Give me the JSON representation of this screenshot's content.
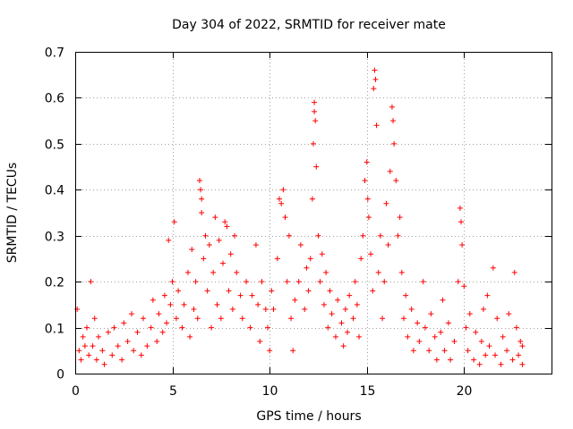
{
  "chart_data": {
    "type": "scatter",
    "title": "Day 304 of 2022, SRMTID for receiver mate",
    "xlabel": "GPS time / hours",
    "ylabel": "SRMTID / TECUs",
    "xlim": [
      0,
      24.5
    ],
    "ylim": [
      0,
      0.7
    ],
    "xticks": [
      0,
      5,
      10,
      15,
      20
    ],
    "yticks": [
      0,
      0.1,
      0.2,
      0.3,
      0.4,
      0.5,
      0.6,
      0.7
    ],
    "grid": true,
    "marker": "+",
    "color": "#ff0000",
    "series": [
      {
        "name": "SRMTID",
        "points": [
          [
            0.1,
            0.14
          ],
          [
            0.2,
            0.05
          ],
          [
            0.3,
            0.03
          ],
          [
            0.4,
            0.08
          ],
          [
            0.5,
            0.06
          ],
          [
            0.6,
            0.1
          ],
          [
            0.7,
            0.04
          ],
          [
            0.8,
            0.2
          ],
          [
            0.9,
            0.06
          ],
          [
            1.0,
            0.12
          ],
          [
            1.1,
            0.03
          ],
          [
            1.2,
            0.08
          ],
          [
            1.4,
            0.05
          ],
          [
            1.5,
            0.02
          ],
          [
            1.7,
            0.09
          ],
          [
            1.9,
            0.04
          ],
          [
            2.0,
            0.1
          ],
          [
            2.2,
            0.06
          ],
          [
            2.4,
            0.03
          ],
          [
            2.5,
            0.11
          ],
          [
            2.7,
            0.07
          ],
          [
            2.9,
            0.13
          ],
          [
            3.0,
            0.05
          ],
          [
            3.2,
            0.09
          ],
          [
            3.4,
            0.04
          ],
          [
            3.5,
            0.12
          ],
          [
            3.7,
            0.06
          ],
          [
            3.9,
            0.1
          ],
          [
            4.0,
            0.16
          ],
          [
            4.2,
            0.07
          ],
          [
            4.3,
            0.13
          ],
          [
            4.5,
            0.09
          ],
          [
            4.6,
            0.17
          ],
          [
            4.7,
            0.11
          ],
          [
            4.8,
            0.29
          ],
          [
            4.9,
            0.15
          ],
          [
            5.0,
            0.2
          ],
          [
            5.1,
            0.33
          ],
          [
            5.2,
            0.12
          ],
          [
            5.3,
            0.18
          ],
          [
            5.5,
            0.1
          ],
          [
            5.6,
            0.15
          ],
          [
            5.8,
            0.22
          ],
          [
            5.9,
            0.08
          ],
          [
            6.0,
            0.27
          ],
          [
            6.1,
            0.14
          ],
          [
            6.2,
            0.2
          ],
          [
            6.3,
            0.12
          ],
          [
            6.4,
            0.42
          ],
          [
            6.45,
            0.4
          ],
          [
            6.5,
            0.38
          ],
          [
            6.5,
            0.35
          ],
          [
            6.6,
            0.25
          ],
          [
            6.7,
            0.3
          ],
          [
            6.8,
            0.18
          ],
          [
            6.9,
            0.28
          ],
          [
            7.0,
            0.1
          ],
          [
            7.1,
            0.22
          ],
          [
            7.2,
            0.34
          ],
          [
            7.3,
            0.15
          ],
          [
            7.4,
            0.29
          ],
          [
            7.5,
            0.12
          ],
          [
            7.6,
            0.24
          ],
          [
            7.7,
            0.33
          ],
          [
            7.8,
            0.32
          ],
          [
            7.9,
            0.18
          ],
          [
            8.0,
            0.26
          ],
          [
            8.1,
            0.14
          ],
          [
            8.2,
            0.3
          ],
          [
            8.3,
            0.22
          ],
          [
            8.5,
            0.17
          ],
          [
            8.6,
            0.12
          ],
          [
            8.8,
            0.2
          ],
          [
            9.0,
            0.1
          ],
          [
            9.1,
            0.17
          ],
          [
            9.3,
            0.28
          ],
          [
            9.4,
            0.15
          ],
          [
            9.5,
            0.07
          ],
          [
            9.6,
            0.2
          ],
          [
            9.8,
            0.14
          ],
          [
            9.9,
            0.1
          ],
          [
            10.0,
            0.05
          ],
          [
            10.1,
            0.18
          ],
          [
            10.2,
            0.14
          ],
          [
            10.4,
            0.25
          ],
          [
            10.5,
            0.38
          ],
          [
            10.6,
            0.37
          ],
          [
            10.7,
            0.4
          ],
          [
            10.8,
            0.34
          ],
          [
            10.9,
            0.2
          ],
          [
            11.0,
            0.3
          ],
          [
            11.1,
            0.12
          ],
          [
            11.2,
            0.05
          ],
          [
            11.3,
            0.16
          ],
          [
            11.5,
            0.2
          ],
          [
            11.6,
            0.28
          ],
          [
            11.8,
            0.14
          ],
          [
            11.9,
            0.23
          ],
          [
            12.0,
            0.18
          ],
          [
            12.1,
            0.25
          ],
          [
            12.2,
            0.38
          ],
          [
            12.25,
            0.5
          ],
          [
            12.3,
            0.59
          ],
          [
            12.3,
            0.57
          ],
          [
            12.35,
            0.55
          ],
          [
            12.4,
            0.45
          ],
          [
            12.5,
            0.3
          ],
          [
            12.6,
            0.2
          ],
          [
            12.7,
            0.26
          ],
          [
            12.8,
            0.15
          ],
          [
            12.9,
            0.22
          ],
          [
            13.0,
            0.1
          ],
          [
            13.1,
            0.18
          ],
          [
            13.2,
            0.13
          ],
          [
            13.4,
            0.08
          ],
          [
            13.5,
            0.16
          ],
          [
            13.7,
            0.11
          ],
          [
            13.8,
            0.06
          ],
          [
            13.9,
            0.14
          ],
          [
            14.0,
            0.09
          ],
          [
            14.1,
            0.17
          ],
          [
            14.3,
            0.12
          ],
          [
            14.4,
            0.2
          ],
          [
            14.5,
            0.15
          ],
          [
            14.6,
            0.08
          ],
          [
            14.7,
            0.25
          ],
          [
            14.8,
            0.3
          ],
          [
            14.9,
            0.42
          ],
          [
            15.0,
            0.46
          ],
          [
            15.05,
            0.38
          ],
          [
            15.1,
            0.34
          ],
          [
            15.2,
            0.26
          ],
          [
            15.3,
            0.18
          ],
          [
            15.35,
            0.62
          ],
          [
            15.4,
            0.66
          ],
          [
            15.45,
            0.64
          ],
          [
            15.5,
            0.54
          ],
          [
            15.6,
            0.22
          ],
          [
            15.7,
            0.3
          ],
          [
            15.8,
            0.12
          ],
          [
            15.9,
            0.2
          ],
          [
            16.0,
            0.37
          ],
          [
            16.1,
            0.28
          ],
          [
            16.2,
            0.44
          ],
          [
            16.3,
            0.58
          ],
          [
            16.35,
            0.55
          ],
          [
            16.4,
            0.5
          ],
          [
            16.5,
            0.42
          ],
          [
            16.6,
            0.3
          ],
          [
            16.7,
            0.34
          ],
          [
            16.8,
            0.22
          ],
          [
            16.9,
            0.12
          ],
          [
            17.0,
            0.17
          ],
          [
            17.1,
            0.08
          ],
          [
            17.3,
            0.14
          ],
          [
            17.4,
            0.05
          ],
          [
            17.6,
            0.11
          ],
          [
            17.7,
            0.07
          ],
          [
            17.9,
            0.2
          ],
          [
            18.0,
            0.1
          ],
          [
            18.2,
            0.05
          ],
          [
            18.3,
            0.13
          ],
          [
            18.5,
            0.08
          ],
          [
            18.6,
            0.03
          ],
          [
            18.8,
            0.09
          ],
          [
            18.9,
            0.16
          ],
          [
            19.0,
            0.05
          ],
          [
            19.2,
            0.11
          ],
          [
            19.3,
            0.03
          ],
          [
            19.5,
            0.07
          ],
          [
            19.7,
            0.2
          ],
          [
            19.8,
            0.36
          ],
          [
            19.85,
            0.33
          ],
          [
            19.9,
            0.28
          ],
          [
            20.0,
            0.19
          ],
          [
            20.1,
            0.1
          ],
          [
            20.2,
            0.05
          ],
          [
            20.3,
            0.13
          ],
          [
            20.5,
            0.03
          ],
          [
            20.6,
            0.09
          ],
          [
            20.8,
            0.02
          ],
          [
            20.9,
            0.07
          ],
          [
            21.0,
            0.14
          ],
          [
            21.1,
            0.04
          ],
          [
            21.2,
            0.17
          ],
          [
            21.3,
            0.06
          ],
          [
            21.5,
            0.23
          ],
          [
            21.6,
            0.04
          ],
          [
            21.7,
            0.12
          ],
          [
            21.9,
            0.02
          ],
          [
            22.0,
            0.08
          ],
          [
            22.2,
            0.05
          ],
          [
            22.3,
            0.13
          ],
          [
            22.5,
            0.03
          ],
          [
            22.6,
            0.22
          ],
          [
            22.7,
            0.1
          ],
          [
            22.8,
            0.04
          ],
          [
            22.9,
            0.07
          ],
          [
            23.0,
            0.02
          ],
          [
            23.0,
            0.06
          ]
        ]
      }
    ]
  }
}
